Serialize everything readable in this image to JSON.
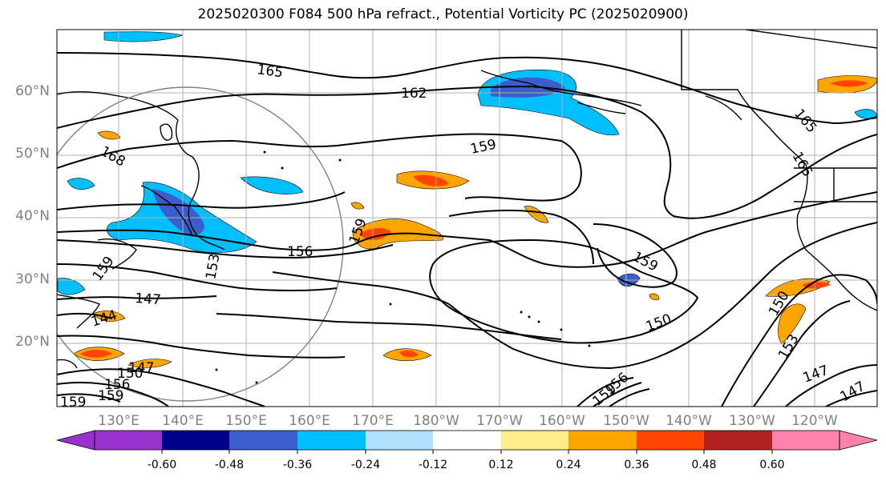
{
  "title": "2025020300 F084 500 hPa refract., Potential Vorticity PC (2025020900)",
  "map": {
    "lat_labels": [
      "60°N",
      "50°N",
      "40°N",
      "30°N",
      "20°N"
    ],
    "lon_labels": [
      "130°E",
      "140°E",
      "150°E",
      "160°E",
      "170°E",
      "180°W",
      "170°W",
      "160°W",
      "150°W",
      "140°W",
      "130°W",
      "120°W"
    ],
    "contour_labels": [
      "165",
      "162",
      "168",
      "159",
      "156",
      "153",
      "159",
      "147",
      "144",
      "159",
      "150",
      "147",
      "159",
      "150",
      "153",
      "147",
      "165",
      "165",
      "147",
      "159",
      "156",
      "150",
      "159",
      "156",
      "159"
    ],
    "tick_color": "#808080"
  },
  "colorbar": {
    "colors": [
      "#9932cc",
      "#00008b",
      "#3a5fcd",
      "#00bfff",
      "#b0e2ff",
      "#ffffff",
      "#ffec8b",
      "#ffa500",
      "#ff4500",
      "#b22222",
      "#ff82ab"
    ],
    "tick_labels": [
      "-0.60",
      "-0.48",
      "-0.36",
      "-0.24",
      "-0.12",
      "0.12",
      "0.24",
      "0.36",
      "0.48",
      "0.60"
    ]
  }
}
